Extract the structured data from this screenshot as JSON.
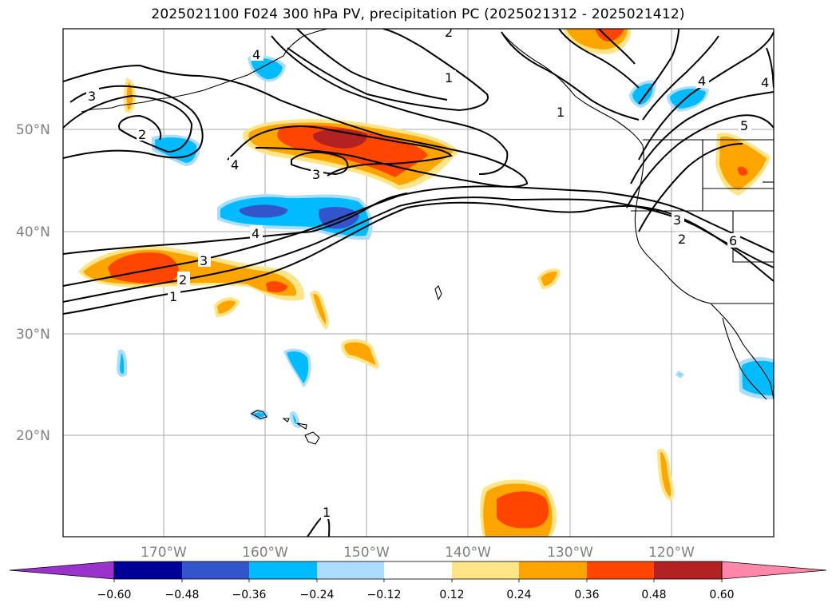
{
  "title": "2025021100 F024 300 hPa PV, precipitation PC (2025021312 - 2025021412)",
  "map": {
    "lat_labels": [
      "50°N",
      "40°N",
      "30°N",
      "20°N"
    ],
    "lon_labels": [
      "170°W",
      "160°W",
      "150°W",
      "140°W",
      "130°W",
      "120°W"
    ],
    "gridline_color": "#aaaaaa",
    "label_color": "#808080"
  },
  "pv_contour_labels": [
    "1",
    "2",
    "3",
    "4",
    "5",
    "6"
  ],
  "colorbar": {
    "ticks": [
      "−0.60",
      "−0.48",
      "−0.36",
      "−0.24",
      "−0.12",
      "0.12",
      "0.24",
      "0.36",
      "0.48",
      "0.60"
    ],
    "colors": {
      "under": "#9933cc",
      "c1": "#000099",
      "c2": "#3355cc",
      "c3": "#00bbff",
      "c4": "#aaddff",
      "c5": "#ffffff",
      "c6": "#ffe588",
      "c7": "#ffa500",
      "c8": "#ff4500",
      "c9": "#b22222",
      "over": "#ff88aa"
    }
  }
}
